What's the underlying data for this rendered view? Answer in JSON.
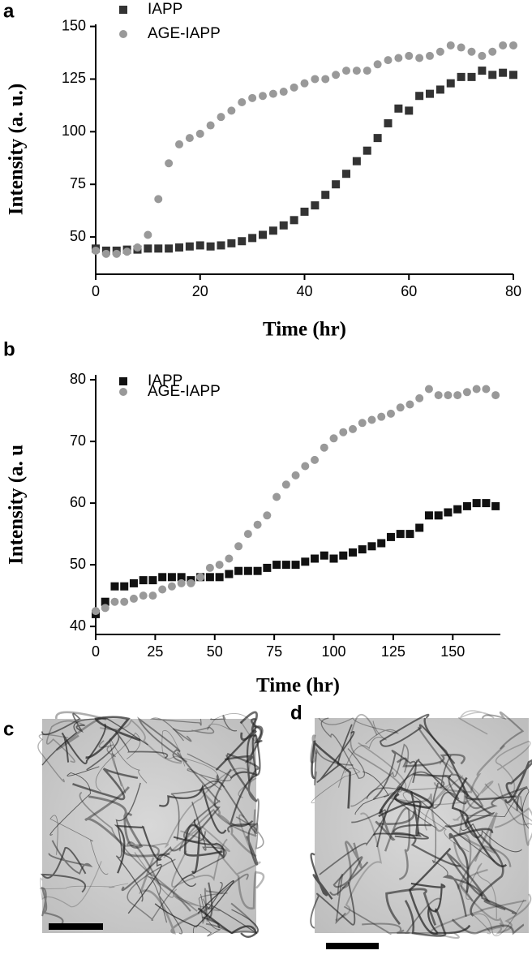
{
  "chart_data": [
    {
      "type": "scatter",
      "panel": "a",
      "xlabel": "Time (hr)",
      "ylabel": "Intensity (a. u.)",
      "xlim": [
        0,
        80
      ],
      "xticks": [
        0,
        20,
        40,
        60,
        80
      ],
      "ylim": [
        32.3,
        151
      ],
      "yticks": [
        50,
        75,
        100,
        125,
        150
      ],
      "x": [
        0,
        2,
        4,
        6,
        8,
        10,
        12,
        14,
        16,
        18,
        20,
        22,
        24,
        26,
        28,
        30,
        32,
        34,
        36,
        38,
        40,
        42,
        44,
        46,
        48,
        50,
        52,
        54,
        56,
        58,
        60,
        62,
        64,
        66,
        68,
        70,
        72,
        74,
        76,
        78,
        80
      ],
      "series": [
        {
          "name": "IAPP",
          "color": "#333333",
          "marker": "square",
          "values": [
            44.5,
            43.5,
            43.5,
            44,
            44,
            44.5,
            44.5,
            44.5,
            45,
            45.5,
            46,
            45.5,
            46,
            47,
            48,
            49.5,
            51,
            53,
            55.5,
            58,
            62,
            65,
            70,
            75,
            80,
            86,
            91,
            97,
            104,
            111,
            110,
            117,
            118,
            120,
            123,
            126,
            126,
            129,
            127,
            128,
            127
          ]
        },
        {
          "name": "AGE-IAPP",
          "color": "#999999",
          "marker": "circle",
          "values": [
            43.5,
            42,
            42,
            43,
            45,
            51,
            68,
            85,
            94,
            97,
            99,
            103,
            107,
            110,
            114,
            116,
            117,
            118,
            119,
            121,
            123,
            125,
            125,
            127,
            129,
            129,
            129,
            132,
            134,
            135,
            136,
            135,
            136,
            138,
            141,
            140,
            138,
            136,
            138,
            141,
            141
          ]
        }
      ]
    },
    {
      "type": "scatter",
      "panel": "b",
      "xlabel": "Time (hr)",
      "ylabel": "Intensity (a. u",
      "xlim": [
        0,
        170
      ],
      "xticks": [
        0,
        25,
        50,
        75,
        100,
        125,
        150
      ],
      "ylim": [
        38.7,
        80.8
      ],
      "yticks": [
        40,
        50,
        60,
        70,
        80
      ],
      "x": [
        0,
        4,
        8,
        12,
        16,
        20,
        24,
        28,
        32,
        36,
        40,
        44,
        48,
        52,
        56,
        60,
        64,
        68,
        72,
        76,
        80,
        84,
        88,
        92,
        96,
        100,
        104,
        108,
        112,
        116,
        120,
        124,
        128,
        132,
        136,
        140,
        144,
        148,
        152,
        156,
        160,
        164,
        168
      ],
      "series": [
        {
          "name": "IAPP",
          "color": "#111111",
          "marker": "square",
          "values": [
            42,
            44,
            46.5,
            46.5,
            47,
            47.5,
            47.5,
            48,
            48,
            48,
            47.5,
            48,
            48,
            48,
            48.5,
            49,
            49,
            49,
            49.5,
            50,
            50,
            50,
            50.5,
            51,
            51.5,
            51,
            51.5,
            52,
            52.5,
            53,
            53.5,
            54.5,
            55,
            55,
            56,
            58,
            58,
            58.5,
            59,
            59.5,
            60,
            60,
            59.5
          ]
        },
        {
          "name": "AGE-IAPP",
          "color": "#999999",
          "marker": "circle",
          "values": [
            42.5,
            43,
            44,
            44,
            44.5,
            45,
            45,
            46,
            46.5,
            47,
            47,
            48,
            49.5,
            50,
            51,
            53,
            55,
            56.5,
            58,
            61,
            63,
            64.5,
            66,
            67,
            69,
            70.5,
            71.5,
            72,
            73,
            73.5,
            74,
            74.5,
            75.5,
            76,
            77,
            78.5,
            77.5,
            77.5,
            77.5,
            78,
            78.5,
            78.5,
            77.5
          ]
        }
      ]
    }
  ],
  "images": [
    {
      "label": "c"
    },
    {
      "label": "d"
    }
  ]
}
